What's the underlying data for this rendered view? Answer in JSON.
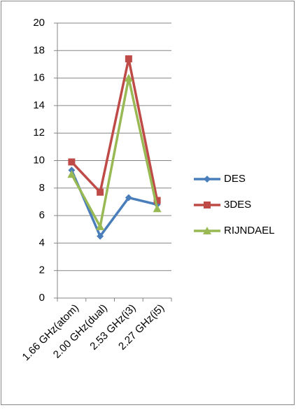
{
  "chart_data": {
    "type": "line",
    "categories": [
      "1.66 GHz(atom)",
      "2.00 GHz(dual)",
      "2.53 GHz(i3)",
      "2.27 GHz(i5)"
    ],
    "series": [
      {
        "name": "DES",
        "color": "#4a7ebb",
        "marker": "diamond",
        "values": [
          9.3,
          4.5,
          7.3,
          6.8
        ]
      },
      {
        "name": "3DES",
        "color": "#be4b48",
        "marker": "square",
        "values": [
          9.9,
          7.7,
          17.4,
          7.1
        ]
      },
      {
        "name": "RIJNDAEL",
        "color": "#98b954",
        "marker": "triangle",
        "values": [
          9.0,
          5.2,
          16.0,
          6.5
        ]
      }
    ],
    "ylim": [
      0,
      20
    ],
    "yticks": [
      0,
      2,
      4,
      6,
      8,
      10,
      12,
      14,
      16,
      18,
      20
    ],
    "grid": true,
    "legend": "right"
  }
}
